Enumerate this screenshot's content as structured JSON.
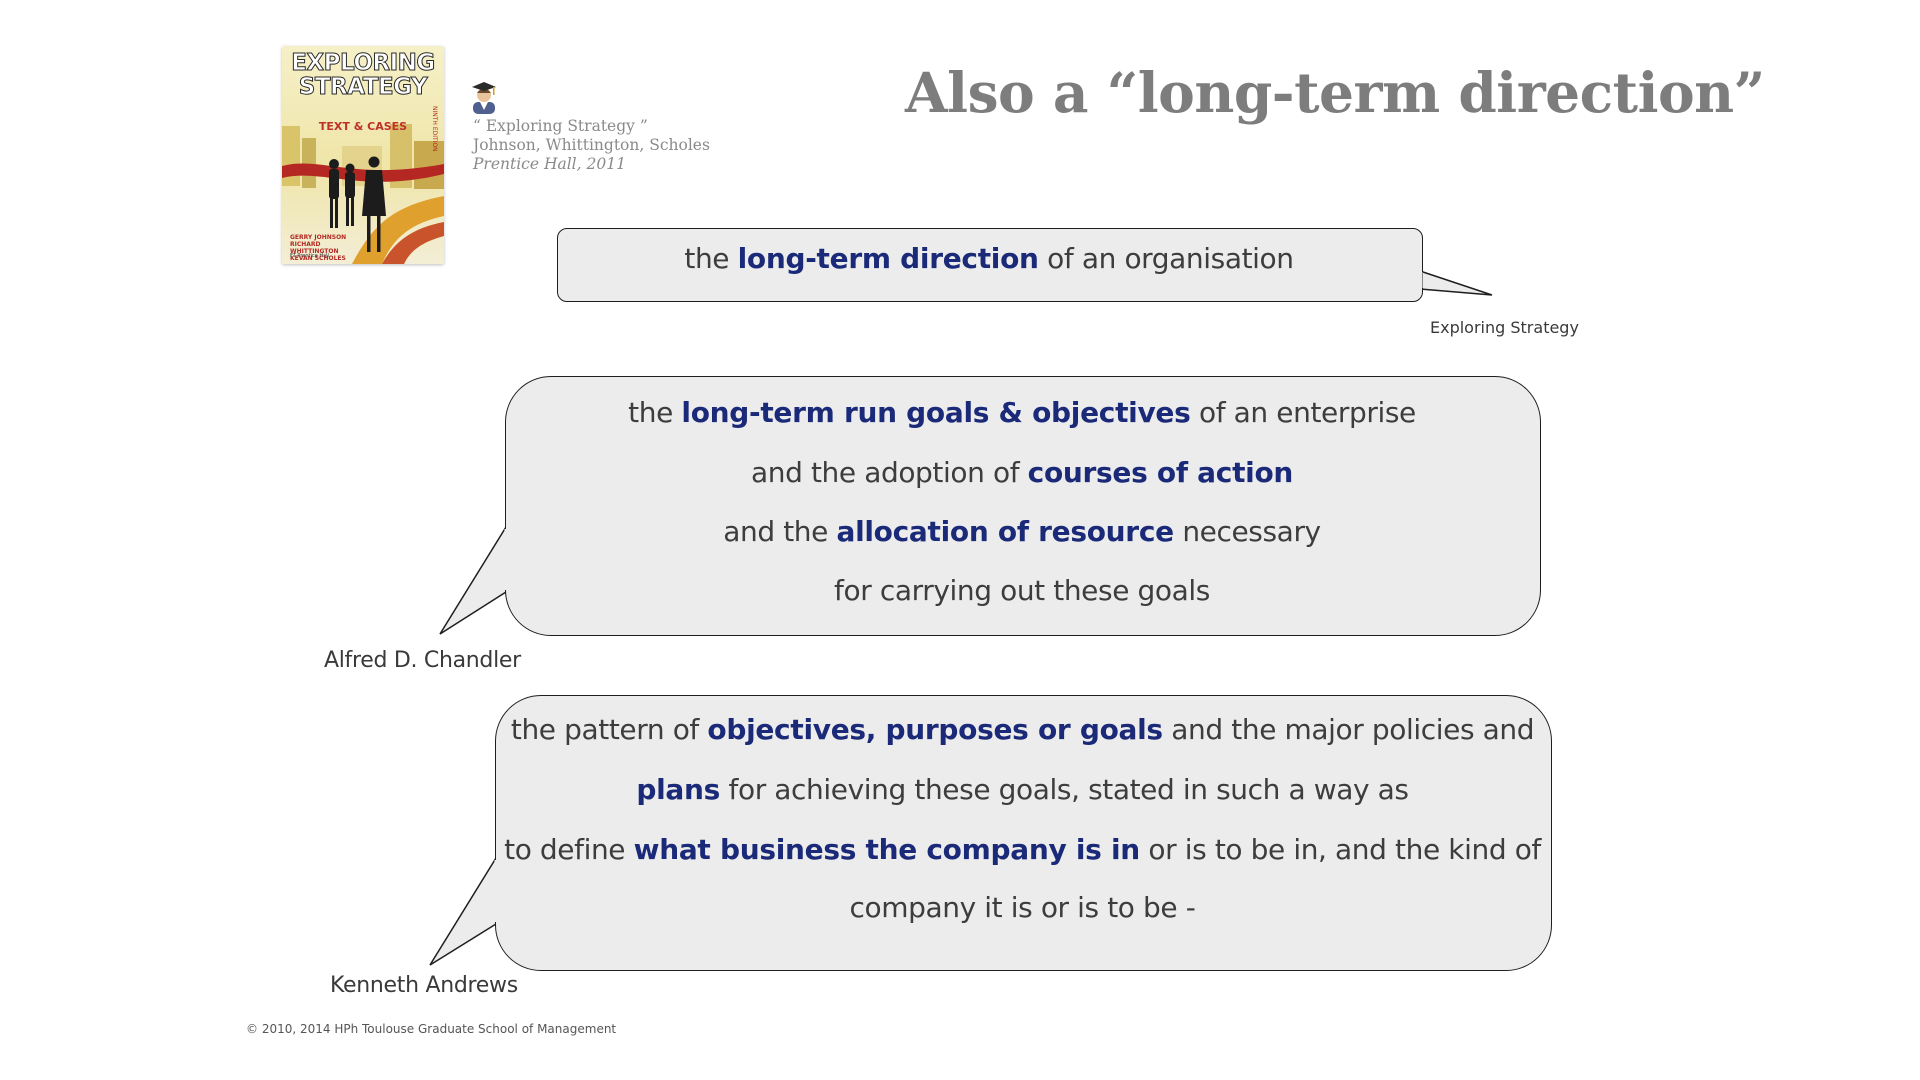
{
  "title": "Also a “long-term direction”",
  "book": {
    "cover_title_line1": "EXPLORING",
    "cover_title_line2": "STRATEGY",
    "cover_subtitle": "TEXT & CASES",
    "cover_edition": "NINTH EDITION",
    "cover_authors": [
      "GERRY JOHNSON",
      "RICHARD WHITTINGTON",
      "KEVAN SCHOLES"
    ],
    "cover_publisher": "FT Prentice Hall"
  },
  "reference": {
    "icon": "graduate-icon",
    "line1": "“ Exploring Strategy ”",
    "line2": "Johnson, Whittington, Scholes",
    "line3": "Prentice Hall, 2011"
  },
  "quotes": [
    {
      "attribution": "Exploring Strategy",
      "lines": [
        [
          {
            "text": "the ",
            "bold": false
          },
          {
            "text": "long-term direction",
            "bold": true
          },
          {
            "text": " of an organisation",
            "bold": false
          }
        ]
      ]
    },
    {
      "attribution": "Alfred D. Chandler",
      "lines": [
        [
          {
            "text": "the ",
            "bold": false
          },
          {
            "text": "long-term run goals & objectives",
            "bold": true
          },
          {
            "text": " of an enterprise",
            "bold": false
          }
        ],
        [
          {
            "text": "and the adoption of ",
            "bold": false
          },
          {
            "text": "courses of action",
            "bold": true
          }
        ],
        [
          {
            "text": "and the ",
            "bold": false
          },
          {
            "text": "allocation of resource",
            "bold": true
          },
          {
            "text": " necessary",
            "bold": false
          }
        ],
        [
          {
            "text": "for carrying out these goals",
            "bold": false
          }
        ]
      ]
    },
    {
      "attribution": "Kenneth Andrews",
      "lines": [
        [
          {
            "text": "the pattern of ",
            "bold": false
          },
          {
            "text": "objectives, purposes or goals",
            "bold": true
          },
          {
            "text": " and the major policies and",
            "bold": false
          }
        ],
        [
          {
            "text": "plans",
            "bold": true
          },
          {
            "text": " for achieving these goals, stated in such a way as",
            "bold": false
          }
        ],
        [
          {
            "text": "to define ",
            "bold": false
          },
          {
            "text": "what business the company is in",
            "bold": true
          },
          {
            "text": " or is to be in, and the kind of",
            "bold": false
          }
        ],
        [
          {
            "text": "company it is or is to be -",
            "bold": false
          }
        ]
      ]
    }
  ],
  "footer": "© 2010, 2014 HPh  Toulouse Graduate School of Management",
  "colors": {
    "title": "#7d7d7d",
    "highlight": "#1b2a78",
    "bubble_fill": "#ececec",
    "bubble_border": "#1e1e1e"
  }
}
